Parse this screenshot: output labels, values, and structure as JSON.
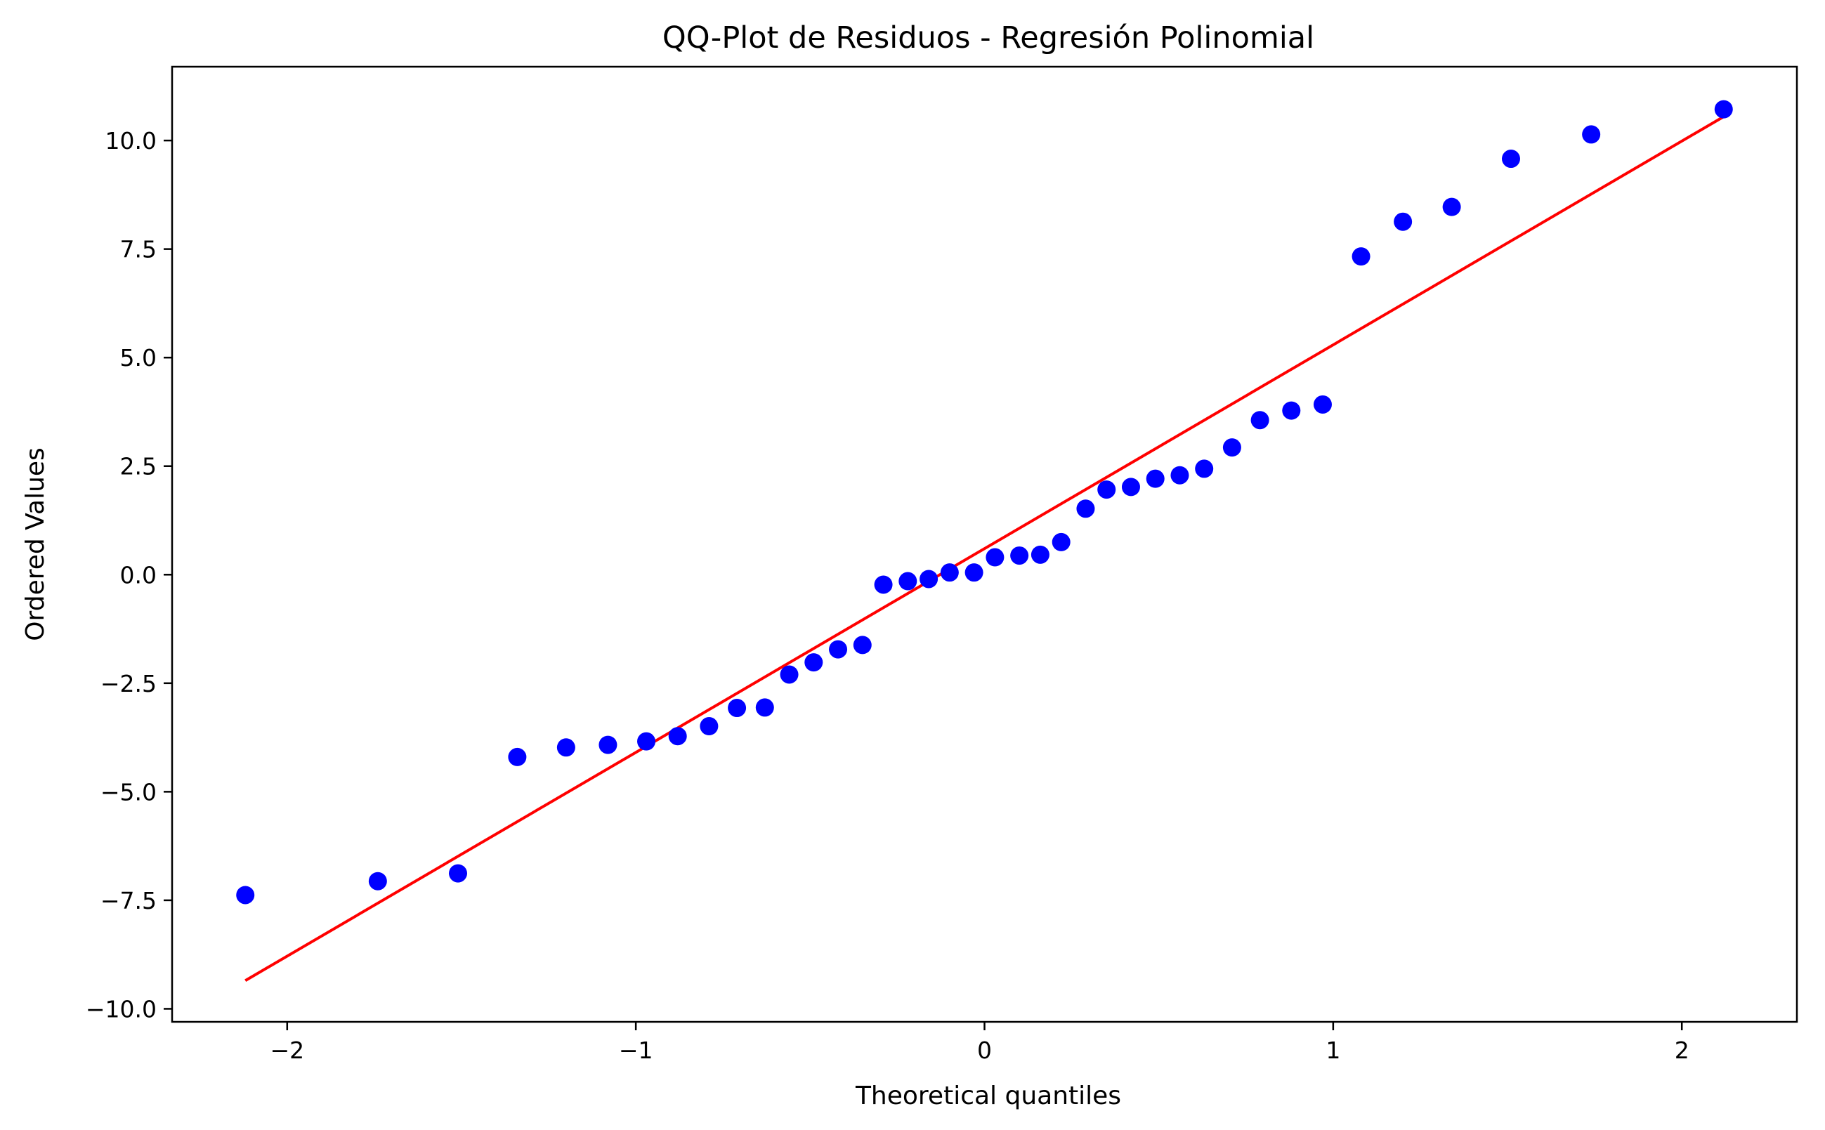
{
  "chart_data": {
    "type": "scatter",
    "title": "QQ-Plot de Residuos - Regresión Polinomial",
    "xlabel": "Theoretical quantiles",
    "ylabel": "Ordered Values",
    "xlim": [
      -2.33,
      2.33
    ],
    "ylim": [
      -10.3,
      11.7
    ],
    "xticks": [
      -2,
      -1,
      0,
      1,
      2
    ],
    "xtick_labels": [
      "−2",
      "−1",
      "0",
      "1",
      "2"
    ],
    "yticks": [
      -10.0,
      -7.5,
      -5.0,
      -2.5,
      0.0,
      2.5,
      5.0,
      7.5,
      10.0
    ],
    "ytick_labels": [
      "−10.0",
      "−7.5",
      "−5.0",
      "−2.5",
      "0.0",
      "2.5",
      "5.0",
      "7.5",
      "10.0"
    ],
    "grid": false,
    "legend": false,
    "points_color": "#0000ff",
    "line_color": "#ff0000",
    "points": {
      "x": [
        -2.12,
        -1.74,
        -1.51,
        -1.34,
        -1.2,
        -1.08,
        -0.97,
        -0.88,
        -0.79,
        -0.71,
        -0.63,
        -0.56,
        -0.49,
        -0.42,
        -0.35,
        -0.29,
        -0.22,
        -0.16,
        -0.1,
        -0.03,
        0.03,
        0.1,
        0.16,
        0.22,
        0.29,
        0.35,
        0.42,
        0.49,
        0.56,
        0.63,
        0.71,
        0.79,
        0.88,
        0.97,
        1.08,
        1.2,
        1.34,
        1.51,
        1.74,
        2.12
      ],
      "y": [
        -7.38,
        -7.06,
        -6.88,
        -4.2,
        -3.98,
        -3.92,
        -3.84,
        -3.72,
        -3.49,
        -3.07,
        -3.06,
        -2.3,
        -2.02,
        -1.72,
        -1.62,
        -0.23,
        -0.15,
        -0.1,
        0.05,
        0.05,
        0.4,
        0.44,
        0.46,
        0.75,
        1.52,
        1.96,
        2.02,
        2.21,
        2.29,
        2.44,
        2.93,
        3.56,
        3.78,
        3.92,
        7.33,
        8.13,
        8.47,
        9.58,
        10.14,
        10.72
      ]
    },
    "fit_line": {
      "x": [
        -2.12,
        2.12
      ],
      "y": [
        -9.35,
        10.55
      ]
    }
  }
}
